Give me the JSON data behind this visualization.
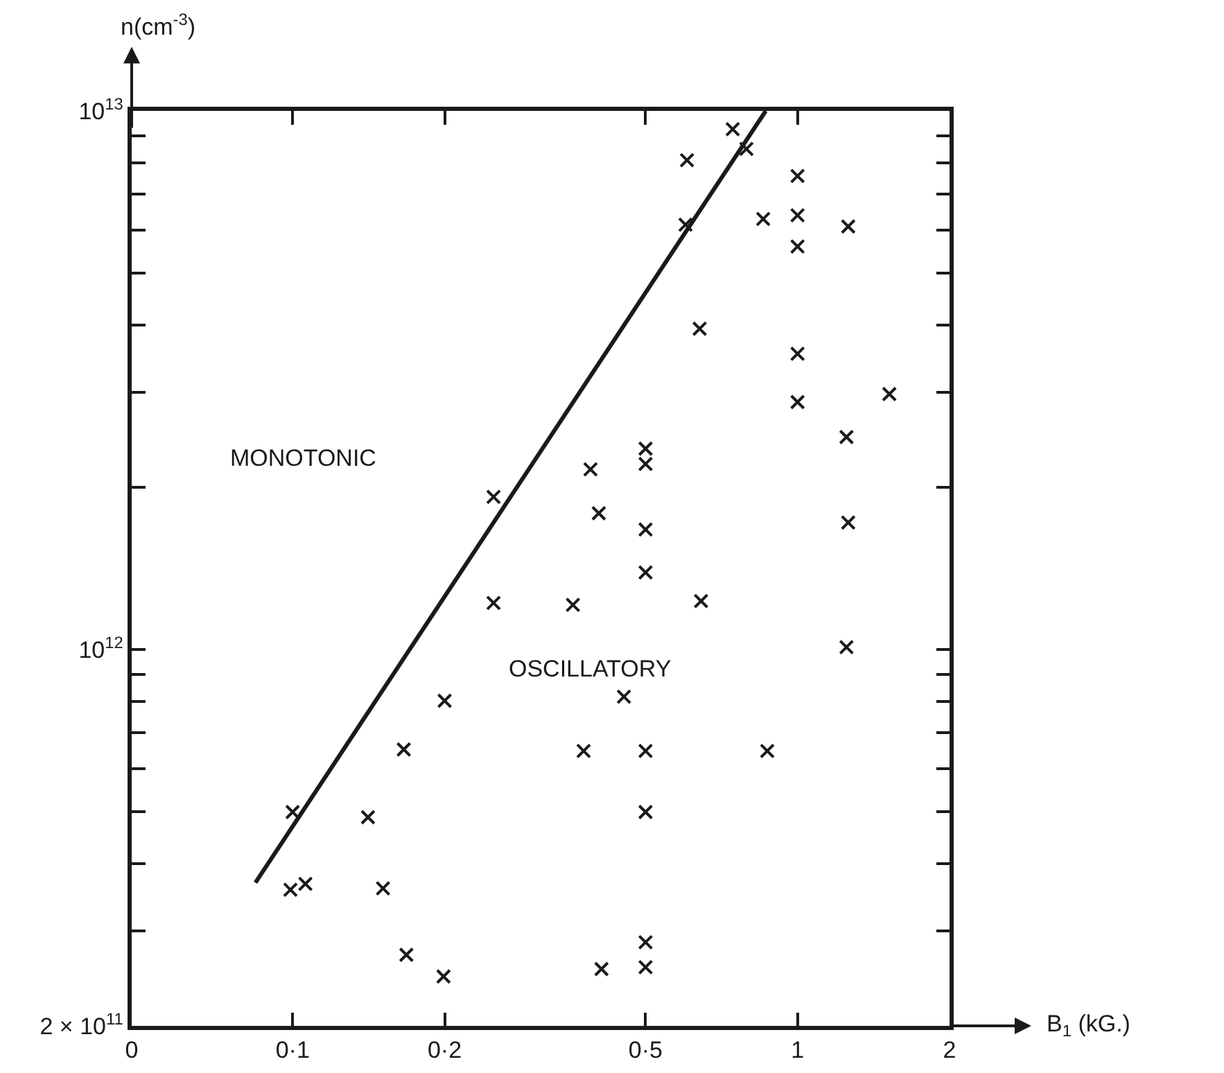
{
  "chart_data": {
    "type": "scatter",
    "xlabel": "B$_{1}$ (kG.)",
    "ylabel": "n(cm$^{-3}$)",
    "log": "xy",
    "grid": false,
    "marker": "cross",
    "xlim": [
      0.048,
      2
    ],
    "xticks": [
      {
        "value": 0.048,
        "label": "0"
      },
      {
        "value": 0.1,
        "label": "0·1"
      },
      {
        "value": 0.2,
        "label": "0·2"
      },
      {
        "value": 0.5,
        "label": "0·5"
      },
      1,
      2
    ],
    "ylim": [
      200000000000.0,
      10000000000000.0
    ],
    "yticks": [
      {
        "value": 200000000000.0,
        "label": "2 × 10$^{11}$"
      },
      {
        "value": 300000000000.0,
        "label": null
      },
      {
        "value": 400000000000.0,
        "label": null
      },
      {
        "value": 500000000000.0,
        "label": null
      },
      {
        "value": 600000000000.0,
        "label": null
      },
      {
        "value": 700000000000.0,
        "label": null
      },
      {
        "value": 800000000000.0,
        "label": null
      },
      {
        "value": 900000000000.0,
        "label": null
      },
      {
        "value": 1000000000000.0,
        "label": "10$^{12}$"
      },
      {
        "value": 2000000000000.0,
        "label": null
      },
      {
        "value": 3000000000000.0,
        "label": null
      },
      {
        "value": 4000000000000.0,
        "label": null
      },
      {
        "value": 5000000000000.0,
        "label": null
      },
      {
        "value": 6000000000000.0,
        "label": null
      },
      {
        "value": 7000000000000.0,
        "label": null
      },
      {
        "value": 8000000000000.0,
        "label": null
      },
      {
        "value": 9000000000000.0,
        "label": null
      },
      {
        "value": 10000000000000.0,
        "label": "10$^{13}$"
      }
    ],
    "series": [
      {
        "color": "#1a1a1a",
        "x": [
          0.744,
          0.792,
          0.604,
          1,
          1,
          0.855,
          1.26,
          0.6,
          1,
          0.64,
          1,
          1,
          1.52,
          1.25,
          0.5,
          0.5,
          0.389,
          0.25,
          0.404,
          0.5,
          1.26,
          0.5,
          0.25,
          0.359,
          0.644,
          1.25,
          0.453,
          0.2,
          0.166,
          0.377,
          0.5,
          0.871,
          0.1,
          0.141,
          0.5,
          0.099,
          0.106,
          0.151,
          0.5,
          0.5,
          0.168,
          0.199,
          0.409
        ],
        "values": [
          9250000000000.0,
          8500000000000.0,
          8100000000000.0,
          7570000000000.0,
          6400000000000.0,
          6300000000000.0,
          6100000000000.0,
          6150000000000.0,
          5600000000000.0,
          3940000000000.0,
          3540000000000.0,
          2880000000000.0,
          2980000000000.0,
          2480000000000.0,
          2360000000000.0,
          2210000000000.0,
          2160000000000.0,
          1920000000000.0,
          1790000000000.0,
          1670000000000.0,
          1720000000000.0,
          1390000000000.0,
          1220000000000.0,
          1210000000000.0,
          1230000000000.0,
          1010000000000.0,
          817000000000.0,
          803000000000.0,
          652000000000.0,
          648000000000.0,
          648000000000.0,
          648000000000.0,
          499000000000.0,
          488000000000.0,
          499000000000.0,
          358000000000.0,
          367000000000.0,
          360000000000.0,
          286000000000.0,
          257000000000.0,
          271000000000.0,
          247000000000.0,
          255000000000.0
        ]
      },
      {
        "type": "line",
        "color": "#1a1a1a",
        "line_style": "solid",
        "marker": "none",
        "x": [
          0.0844,
          0.865
        ],
        "values": [
          369000000000.0,
          10000000000000.0
        ]
      }
    ],
    "annotations": [
      "MONOTONIC",
      "OSCILLATORY"
    ]
  }
}
